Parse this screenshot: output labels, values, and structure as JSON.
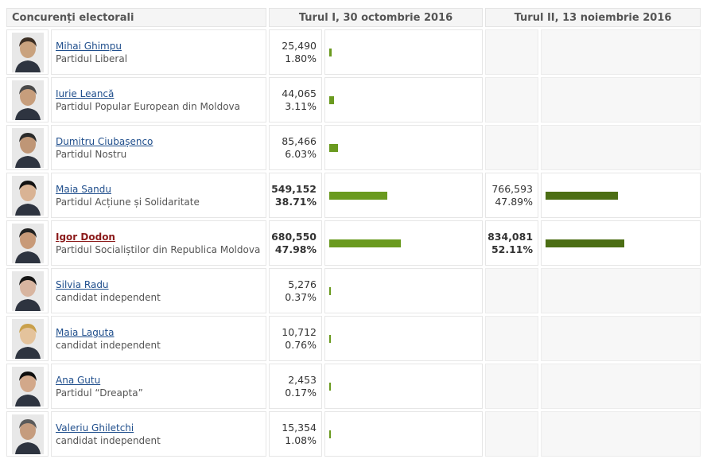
{
  "header": {
    "col_candidates": "Concurenți electorali",
    "col_round1": "Turul I, 30 octombrie 2016",
    "col_round2": "Turul II, 13 noiembrie 2016"
  },
  "colors": {
    "round1_bar": "#6a9a1f",
    "round2_bar": "#4c6e14",
    "link": "#1f4e8c",
    "winner_link": "#8b1a1a"
  },
  "candidates": [
    {
      "name": "Mihai Ghimpu",
      "party": "Partidul Liberal",
      "r1_votes": "25,490",
      "r1_pct": "1.80%",
      "r1_value": 1.8,
      "bold": false,
      "winner": false,
      "icon": "candidate-photo"
    },
    {
      "name": "Iurie Leancă",
      "party": "Partidul Popular European din Moldova",
      "r1_votes": "44,065",
      "r1_pct": "3.11%",
      "r1_value": 3.11,
      "bold": false,
      "winner": false,
      "icon": "candidate-photo"
    },
    {
      "name": "Dumitru Ciubașenco",
      "party": "Partidul Nostru",
      "r1_votes": "85,466",
      "r1_pct": "6.03%",
      "r1_value": 6.03,
      "bold": false,
      "winner": false,
      "icon": "candidate-photo"
    },
    {
      "name": "Maia Sandu",
      "party": "Partidul Acțiune și Solidaritate",
      "r1_votes": "549,152",
      "r1_pct": "38.71%",
      "r1_value": 38.71,
      "bold": true,
      "winner": false,
      "r2_votes": "766,593",
      "r2_pct": "47.89%",
      "r2_value": 47.89,
      "r2_bold": false,
      "icon": "candidate-photo"
    },
    {
      "name": "Igor Dodon",
      "party": "Partidul Socialiștilor din Republica Moldova",
      "r1_votes": "680,550",
      "r1_pct": "47.98%",
      "r1_value": 47.98,
      "bold": true,
      "winner": true,
      "r2_votes": "834,081",
      "r2_pct": "52.11%",
      "r2_value": 52.11,
      "r2_bold": true,
      "icon": "candidate-photo"
    },
    {
      "name": "Silvia Radu",
      "party": "candidat independent",
      "r1_votes": "5,276",
      "r1_pct": "0.37%",
      "r1_value": 0.37,
      "bold": false,
      "winner": false,
      "icon": "candidate-photo"
    },
    {
      "name": "Maia Laguta",
      "party": "candidat independent",
      "r1_votes": "10,712",
      "r1_pct": "0.76%",
      "r1_value": 0.76,
      "bold": false,
      "winner": false,
      "icon": "candidate-photo"
    },
    {
      "name": "Ana Gutu",
      "party": "Partidul “Dreapta”",
      "r1_votes": "2,453",
      "r1_pct": "0.17%",
      "r1_value": 0.17,
      "bold": false,
      "winner": false,
      "icon": "candidate-photo"
    },
    {
      "name": "Valeriu Ghiletchi",
      "party": "candidat independent",
      "r1_votes": "15,354",
      "r1_pct": "1.08%",
      "r1_value": 1.08,
      "bold": false,
      "winner": false,
      "icon": "candidate-photo"
    }
  ]
}
